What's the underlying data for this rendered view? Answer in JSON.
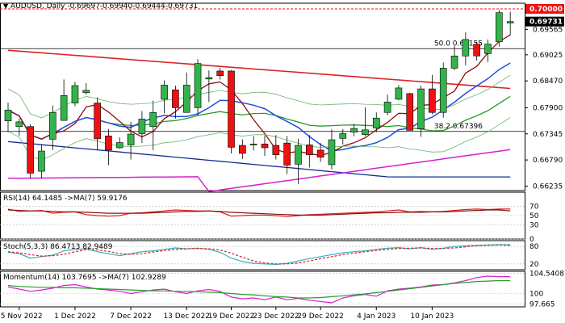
{
  "header": {
    "symbol": "AUDUSD",
    "timeframe": "Daily",
    "ohlc": "-0.69697-0.69940-0.69444-0.69731"
  },
  "chart_data": [
    {
      "type": "candlestick",
      "price_labels": [
        "0.69565",
        "0.69025",
        "0.68470",
        "0.67900",
        "0.67345",
        "0.66790",
        "0.66235"
      ],
      "x_labels": [
        "25 Nov 2022",
        "1 Dec 2022",
        "7 Dec 2022",
        "13 Dec 2022",
        "19 Dec 2022",
        "23 Dec 2022",
        "29 Dec 2022",
        "4 Jan 2023",
        "10 Jan 2023"
      ],
      "current_price": "0.69731",
      "resistance_price": "0.70000",
      "fib_levels": [
        {
          "label": "50.0 0.69155",
          "value": 0.69155
        },
        {
          "label": "38.2 0.67396",
          "value": 0.67396
        }
      ],
      "resistance_value": 0.7,
      "ylim": [
        0.6614,
        0.7012
      ],
      "candles": [
        {
          "date": "2022-11-24",
          "o": 0.6762,
          "h": 0.6801,
          "l": 0.6738,
          "c": 0.6785
        },
        {
          "date": "2022-11-25",
          "o": 0.675,
          "h": 0.6767,
          "l": 0.673,
          "c": 0.676
        },
        {
          "date": "2022-11-28",
          "o": 0.675,
          "h": 0.6755,
          "l": 0.664,
          "c": 0.6651
        },
        {
          "date": "2022-11-29",
          "o": 0.6655,
          "h": 0.6712,
          "l": 0.664,
          "c": 0.6698
        },
        {
          "date": "2022-11-30",
          "o": 0.6723,
          "h": 0.6795,
          "l": 0.67,
          "c": 0.678
        },
        {
          "date": "2022-12-01",
          "o": 0.6763,
          "h": 0.685,
          "l": 0.6763,
          "c": 0.6816
        },
        {
          "date": "2022-12-02",
          "o": 0.68,
          "h": 0.6845,
          "l": 0.6793,
          "c": 0.6837
        },
        {
          "date": "2022-12-05",
          "o": 0.6822,
          "h": 0.6842,
          "l": 0.6818,
          "c": 0.6827
        },
        {
          "date": "2022-12-06",
          "o": 0.68,
          "h": 0.6812,
          "l": 0.67,
          "c": 0.6724
        },
        {
          "date": "2022-12-07",
          "o": 0.673,
          "h": 0.6745,
          "l": 0.6668,
          "c": 0.67
        },
        {
          "date": "2022-12-08",
          "o": 0.6705,
          "h": 0.6727,
          "l": 0.6703,
          "c": 0.6716
        },
        {
          "date": "2022-12-09",
          "o": 0.6711,
          "h": 0.676,
          "l": 0.668,
          "c": 0.6734
        },
        {
          "date": "2022-12-12",
          "o": 0.6735,
          "h": 0.6783,
          "l": 0.6715,
          "c": 0.6766
        },
        {
          "date": "2022-12-13",
          "o": 0.675,
          "h": 0.6805,
          "l": 0.67,
          "c": 0.678
        },
        {
          "date": "2022-12-14",
          "o": 0.6808,
          "h": 0.6848,
          "l": 0.6778,
          "c": 0.6838
        },
        {
          "date": "2022-12-15",
          "o": 0.6828,
          "h": 0.6837,
          "l": 0.6767,
          "c": 0.679
        },
        {
          "date": "2022-12-16",
          "o": 0.678,
          "h": 0.6865,
          "l": 0.678,
          "c": 0.6838
        },
        {
          "date": "2022-12-19",
          "o": 0.679,
          "h": 0.6893,
          "l": 0.6774,
          "c": 0.6884
        },
        {
          "date": "2022-12-20",
          "o": 0.6851,
          "h": 0.6869,
          "l": 0.6802,
          "c": 0.6854
        },
        {
          "date": "2022-12-21",
          "o": 0.6868,
          "h": 0.6875,
          "l": 0.685,
          "c": 0.6858
        },
        {
          "date": "2022-12-22",
          "o": 0.6868,
          "h": 0.687,
          "l": 0.6693,
          "c": 0.6706
        },
        {
          "date": "2022-12-23",
          "o": 0.671,
          "h": 0.6723,
          "l": 0.6681,
          "c": 0.6693
        },
        {
          "date": "2022-12-26",
          "o": 0.6713,
          "h": 0.673,
          "l": 0.6699,
          "c": 0.6713
        },
        {
          "date": "2022-12-27",
          "o": 0.6713,
          "h": 0.6731,
          "l": 0.6688,
          "c": 0.6705
        },
        {
          "date": "2022-12-28",
          "o": 0.671,
          "h": 0.6732,
          "l": 0.668,
          "c": 0.669
        },
        {
          "date": "2022-12-29",
          "o": 0.6715,
          "h": 0.673,
          "l": 0.6649,
          "c": 0.6668
        },
        {
          "date": "2022-12-30",
          "o": 0.667,
          "h": 0.6724,
          "l": 0.6628,
          "c": 0.671
        },
        {
          "date": "2023-01-02",
          "o": 0.6711,
          "h": 0.6732,
          "l": 0.6663,
          "c": 0.669
        },
        {
          "date": "2023-01-03",
          "o": 0.67,
          "h": 0.6715,
          "l": 0.6675,
          "c": 0.6685
        },
        {
          "date": "2023-01-04",
          "o": 0.6669,
          "h": 0.6744,
          "l": 0.6659,
          "c": 0.6722
        },
        {
          "date": "2023-01-05",
          "o": 0.6725,
          "h": 0.6745,
          "l": 0.6712,
          "c": 0.6735
        },
        {
          "date": "2023-01-06",
          "o": 0.6738,
          "h": 0.6755,
          "l": 0.6729,
          "c": 0.6746
        },
        {
          "date": "2023-01-09",
          "o": 0.6733,
          "h": 0.6791,
          "l": 0.673,
          "c": 0.6743
        },
        {
          "date": "2023-01-10",
          "o": 0.6747,
          "h": 0.678,
          "l": 0.6738,
          "c": 0.6768
        },
        {
          "date": "2023-01-11",
          "o": 0.678,
          "h": 0.6818,
          "l": 0.6774,
          "c": 0.6802
        },
        {
          "date": "2023-01-12",
          "o": 0.6808,
          "h": 0.6838,
          "l": 0.6806,
          "c": 0.6832
        },
        {
          "date": "2023-01-13",
          "o": 0.682,
          "h": 0.6822,
          "l": 0.6743,
          "c": 0.6742
        },
        {
          "date": "2023-01-16",
          "o": 0.6745,
          "h": 0.6837,
          "l": 0.6728,
          "c": 0.683
        },
        {
          "date": "2023-01-17",
          "o": 0.683,
          "h": 0.686,
          "l": 0.6776,
          "c": 0.678
        },
        {
          "date": "2023-01-18",
          "o": 0.678,
          "h": 0.6886,
          "l": 0.6769,
          "c": 0.6874
        },
        {
          "date": "2023-01-19",
          "o": 0.6874,
          "h": 0.6921,
          "l": 0.687,
          "c": 0.69
        },
        {
          "date": "2023-01-20",
          "o": 0.69,
          "h": 0.695,
          "l": 0.688,
          "c": 0.6935
        },
        {
          "date": "2023-01-23",
          "o": 0.6925,
          "h": 0.693,
          "l": 0.689,
          "c": 0.69
        },
        {
          "date": "2023-01-24",
          "o": 0.6905,
          "h": 0.6935,
          "l": 0.6887,
          "c": 0.6925
        },
        {
          "date": "2023-01-25",
          "o": 0.693,
          "h": 0.6998,
          "l": 0.692,
          "c": 0.6992
        },
        {
          "date": "2023-01-26",
          "o": 0.697,
          "h": 0.6994,
          "l": 0.6944,
          "c": 0.6973
        }
      ]
    },
    {
      "type": "line",
      "name": "RSI",
      "title": "RSI(14) 64.1485  ->MA(7) 59.9176",
      "tick_labels": [
        "70",
        "50",
        "30",
        "0"
      ],
      "ylim": [
        0,
        100
      ],
      "series": [
        {
          "name": "RSI(14)",
          "values": [
            64,
            59,
            60,
            61,
            55,
            57,
            58,
            52,
            50,
            49,
            50,
            55,
            56,
            58,
            60,
            62,
            61,
            60,
            60,
            58,
            49,
            50,
            51,
            51,
            50,
            48,
            50,
            52,
            53,
            54,
            55,
            56,
            57,
            58,
            60,
            62,
            58,
            59,
            58,
            59,
            61,
            63,
            64,
            63,
            64,
            64
          ]
        },
        {
          "name": "MA(7)",
          "values": [
            62,
            61,
            60,
            60,
            59,
            58,
            58,
            57,
            56,
            55,
            55,
            55,
            55,
            56,
            57,
            58,
            59,
            59,
            60,
            59,
            57,
            56,
            55,
            54,
            53,
            52,
            51,
            51,
            51,
            52,
            53,
            54,
            55,
            56,
            56,
            57,
            57,
            57,
            58,
            58,
            59,
            60,
            61,
            62,
            62,
            60
          ]
        }
      ]
    },
    {
      "type": "line",
      "name": "Stoch",
      "title": "Stoch(5,3,3) 86.4713 82.9489",
      "tick_labels": [
        "80",
        "20"
      ],
      "ylim": [
        0,
        100
      ],
      "series": [
        {
          "name": "%K",
          "values": [
            60,
            55,
            40,
            45,
            50,
            65,
            70,
            72,
            62,
            55,
            48,
            55,
            62,
            65,
            70,
            75,
            72,
            74,
            70,
            60,
            40,
            28,
            22,
            20,
            18,
            22,
            30,
            38,
            45,
            52,
            58,
            62,
            65,
            70,
            74,
            76,
            72,
            76,
            70,
            74,
            80,
            82,
            84,
            85,
            86,
            86
          ]
        },
        {
          "name": "%D",
          "values": [
            62,
            58,
            52,
            47,
            48,
            53,
            62,
            69,
            68,
            63,
            55,
            53,
            55,
            61,
            66,
            70,
            72,
            73,
            72,
            68,
            57,
            43,
            30,
            23,
            20,
            20,
            23,
            30,
            38,
            45,
            52,
            57,
            62,
            66,
            70,
            73,
            74,
            75,
            73,
            73,
            75,
            79,
            82,
            84,
            85,
            83
          ]
        }
      ]
    },
    {
      "type": "line",
      "name": "Momentum",
      "title": "Momentum(14) 103.7695  ->MA(7) 102.9289",
      "tick_labels": [
        "104.5408",
        "100",
        "97.665"
      ],
      "ylim": [
        97.0,
        105.0
      ],
      "series": [
        {
          "name": "Momentum(14)",
          "values": [
            101.5,
            101.0,
            100.5,
            100.8,
            101.2,
            101.8,
            102.0,
            101.5,
            101.0,
            100.8,
            100.5,
            100.0,
            100.4,
            100.8,
            101.0,
            100.4,
            100.0,
            100.6,
            100.9,
            100.5,
            99.2,
            98.8,
            99.0,
            98.6,
            99.2,
            98.6,
            98.9,
            98.5,
            98.2,
            97.9,
            99.0,
            99.5,
            99.8,
            99.4,
            100.6,
            101.0,
            101.2,
            101.5,
            101.9,
            102.0,
            102.4,
            102.9,
            103.6,
            103.9,
            103.8,
            103.8
          ]
        },
        {
          "name": "MA(7)",
          "values": [
            101.8,
            101.6,
            101.5,
            101.4,
            101.4,
            101.3,
            101.3,
            101.2,
            101.1,
            101.0,
            100.9,
            100.8,
            100.7,
            100.6,
            100.6,
            100.5,
            100.5,
            100.4,
            100.3,
            100.2,
            100.0,
            99.8,
            99.7,
            99.5,
            99.3,
            99.2,
            99.0,
            99.0,
            99.1,
            99.3,
            99.5,
            99.7,
            99.9,
            100.2,
            100.5,
            100.8,
            101.1,
            101.4,
            101.7,
            102.0,
            102.3,
            102.5,
            102.7,
            102.8,
            102.9,
            102.9
          ]
        }
      ]
    }
  ],
  "colors": {
    "up": "#33b44a",
    "down": "#ee1111",
    "resistance": "#ee1111",
    "current_label_bg": "#000000",
    "ma_red": "#dd2222",
    "ma_blue": "#1f4fe0",
    "ma_navy": "#152c8f",
    "ma_green": "#2a9a2a",
    "ma_magenta": "#d421cf",
    "ma_pink": "#e39ae0",
    "bb_green": "#6cb56c",
    "ma_darkred": "#8b1010"
  }
}
